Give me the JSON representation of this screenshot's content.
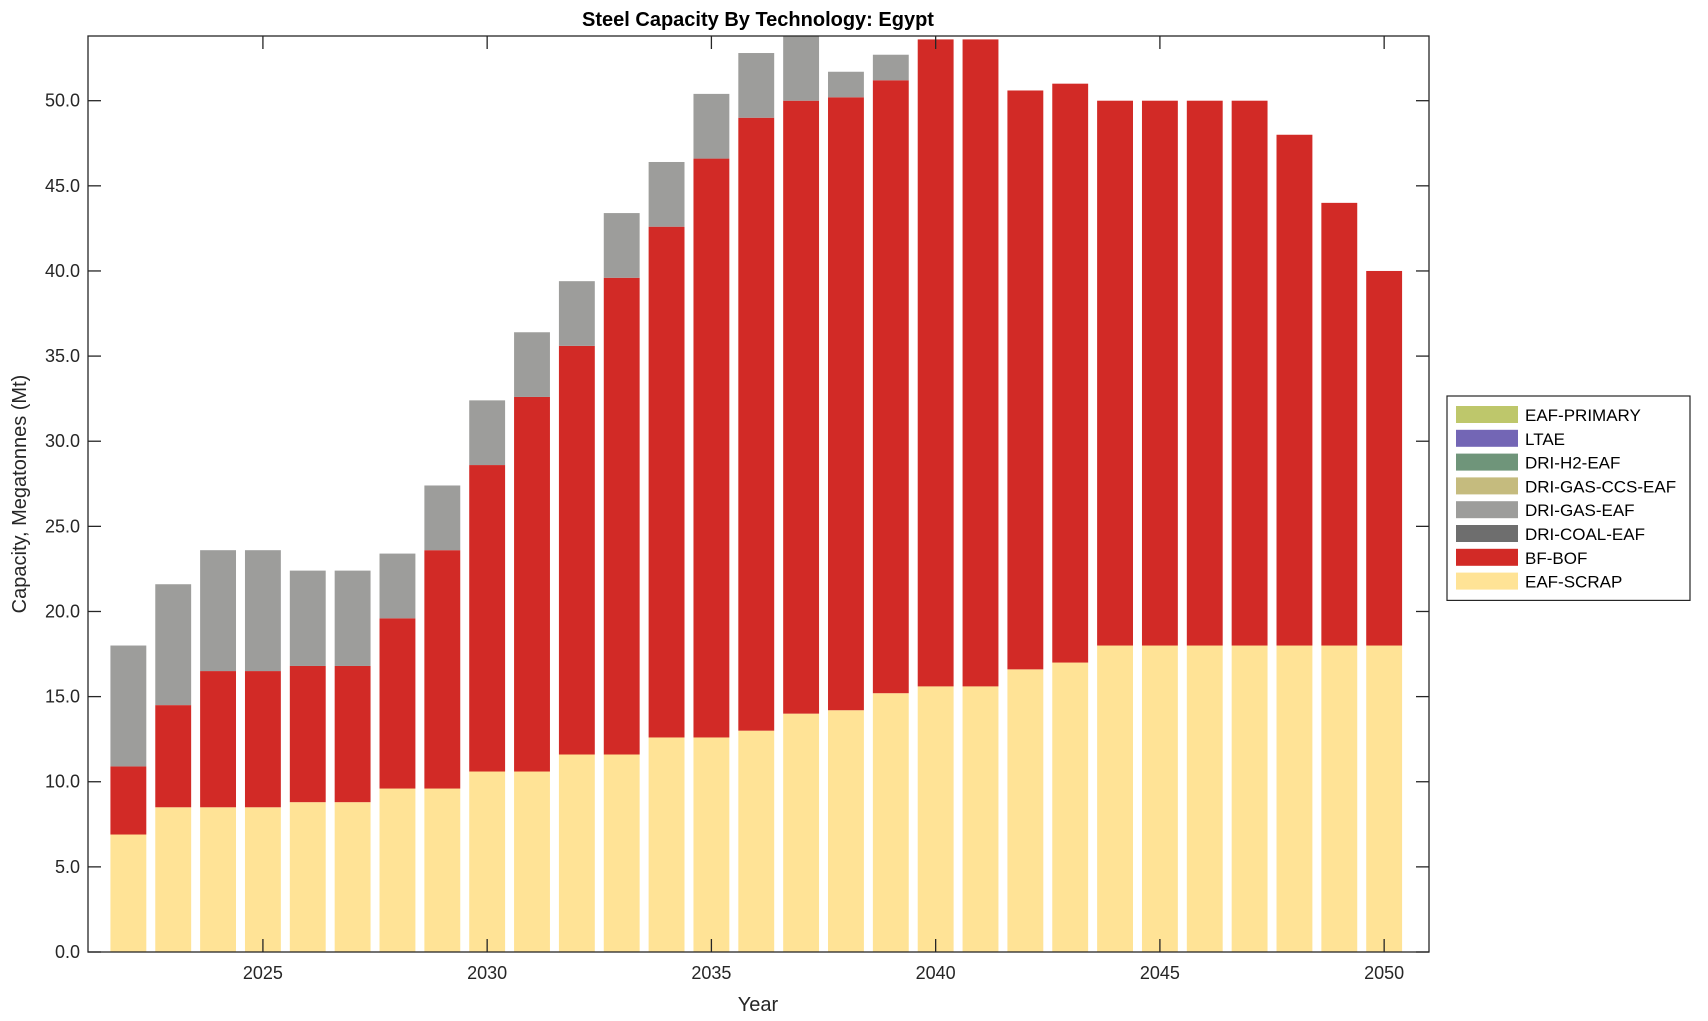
{
  "chart_data": {
    "type": "bar",
    "stacked": true,
    "title": "Steel Capacity By Technology: Egypt",
    "xlabel": "Year",
    "ylabel": "Capacity, Megatonnes (Mt)",
    "ylim": [
      0,
      53.8
    ],
    "xlim": [
      2021.1,
      2051.0
    ],
    "yticks": [
      0,
      5,
      10,
      15,
      20,
      25,
      30,
      35,
      40,
      45,
      50
    ],
    "ytick_labels": [
      "0.0",
      "5.0",
      "10.0",
      "15.0",
      "20.0",
      "25.0",
      "30.0",
      "35.0",
      "40.0",
      "45.0",
      "50.0"
    ],
    "xticks": [
      2025,
      2030,
      2035,
      2040,
      2045,
      2050
    ],
    "xtick_labels": [
      "2025",
      "2030",
      "2035",
      "2040",
      "2045",
      "2050"
    ],
    "grid": false,
    "legend_position": "right",
    "categories": [
      2022,
      2023,
      2024,
      2025,
      2026,
      2027,
      2028,
      2029,
      2030,
      2031,
      2032,
      2033,
      2034,
      2035,
      2036,
      2037,
      2038,
      2039,
      2040,
      2041,
      2042,
      2043,
      2044,
      2045,
      2046,
      2047,
      2048,
      2049,
      2050
    ],
    "series": [
      {
        "name": "EAF-SCRAP",
        "color": "#FFE396",
        "values": [
          6.9,
          8.5,
          8.5,
          8.5,
          8.8,
          8.8,
          9.6,
          9.6,
          10.6,
          10.6,
          11.6,
          11.6,
          12.6,
          12.6,
          13.0,
          14.0,
          14.2,
          15.2,
          15.6,
          15.6,
          16.6,
          17.0,
          18.0,
          18.0,
          18.0,
          18.0,
          18.0,
          18.0,
          18.0
        ]
      },
      {
        "name": "BF-BOF",
        "color": "#D22A26",
        "values": [
          4.0,
          6.0,
          8.0,
          8.0,
          8.0,
          8.0,
          10.0,
          14.0,
          18.0,
          22.0,
          24.0,
          28.0,
          30.0,
          34.0,
          36.0,
          36.0,
          36.0,
          36.0,
          38.0,
          38.0,
          34.0,
          34.0,
          32.0,
          32.0,
          32.0,
          32.0,
          30.0,
          26.0,
          22.0
        ]
      },
      {
        "name": "DRI-COAL-EAF",
        "color": "#6E6E6E",
        "values": [
          0,
          0,
          0,
          0,
          0,
          0,
          0,
          0,
          0,
          0,
          0,
          0,
          0,
          0,
          0,
          0,
          0,
          0,
          0,
          0,
          0,
          0,
          0,
          0,
          0,
          0,
          0,
          0,
          0
        ]
      },
      {
        "name": "DRI-GAS-EAF",
        "color": "#9D9D9B",
        "values": [
          7.1,
          7.1,
          7.1,
          7.1,
          5.6,
          5.6,
          3.8,
          3.8,
          3.8,
          3.8,
          3.8,
          3.8,
          3.8,
          3.8,
          3.8,
          4.0,
          1.5,
          1.5,
          0,
          0,
          0,
          0,
          0,
          0,
          0,
          0,
          0,
          0,
          0
        ]
      },
      {
        "name": "DRI-GAS-CCS-EAF",
        "color": "#C5BB7E",
        "values": [
          0,
          0,
          0,
          0,
          0,
          0,
          0,
          0,
          0,
          0,
          0,
          0,
          0,
          0,
          0,
          0,
          0,
          0,
          0,
          0,
          0,
          0,
          0,
          0,
          0,
          0,
          0,
          0,
          0
        ]
      },
      {
        "name": "DRI-H2-EAF",
        "color": "#6F957A",
        "values": [
          0,
          0,
          0,
          0,
          0,
          0,
          0,
          0,
          0,
          0,
          0,
          0,
          0,
          0,
          0,
          0,
          0,
          0,
          0,
          0,
          0,
          0,
          0,
          0,
          0,
          0,
          0,
          0,
          0
        ]
      },
      {
        "name": "LTAE",
        "color": "#7366B5",
        "values": [
          0,
          0,
          0,
          0,
          0,
          0,
          0,
          0,
          0,
          0,
          0,
          0,
          0,
          0,
          0,
          0,
          0,
          0,
          0,
          0,
          0,
          0,
          0,
          0,
          0,
          0,
          0,
          0,
          0
        ]
      },
      {
        "name": "EAF-PRIMARY",
        "color": "#BEC76B",
        "values": [
          0,
          0,
          0,
          0,
          0,
          0,
          0,
          0,
          0,
          0,
          0,
          0,
          0,
          0,
          0,
          0,
          0,
          0,
          0,
          0,
          0,
          0,
          0,
          0,
          0,
          0,
          0,
          0,
          0
        ]
      }
    ],
    "legend_order": [
      "EAF-PRIMARY",
      "LTAE",
      "DRI-H2-EAF",
      "DRI-GAS-CCS-EAF",
      "DRI-GAS-EAF",
      "DRI-COAL-EAF",
      "BF-BOF",
      "EAF-SCRAP"
    ]
  }
}
